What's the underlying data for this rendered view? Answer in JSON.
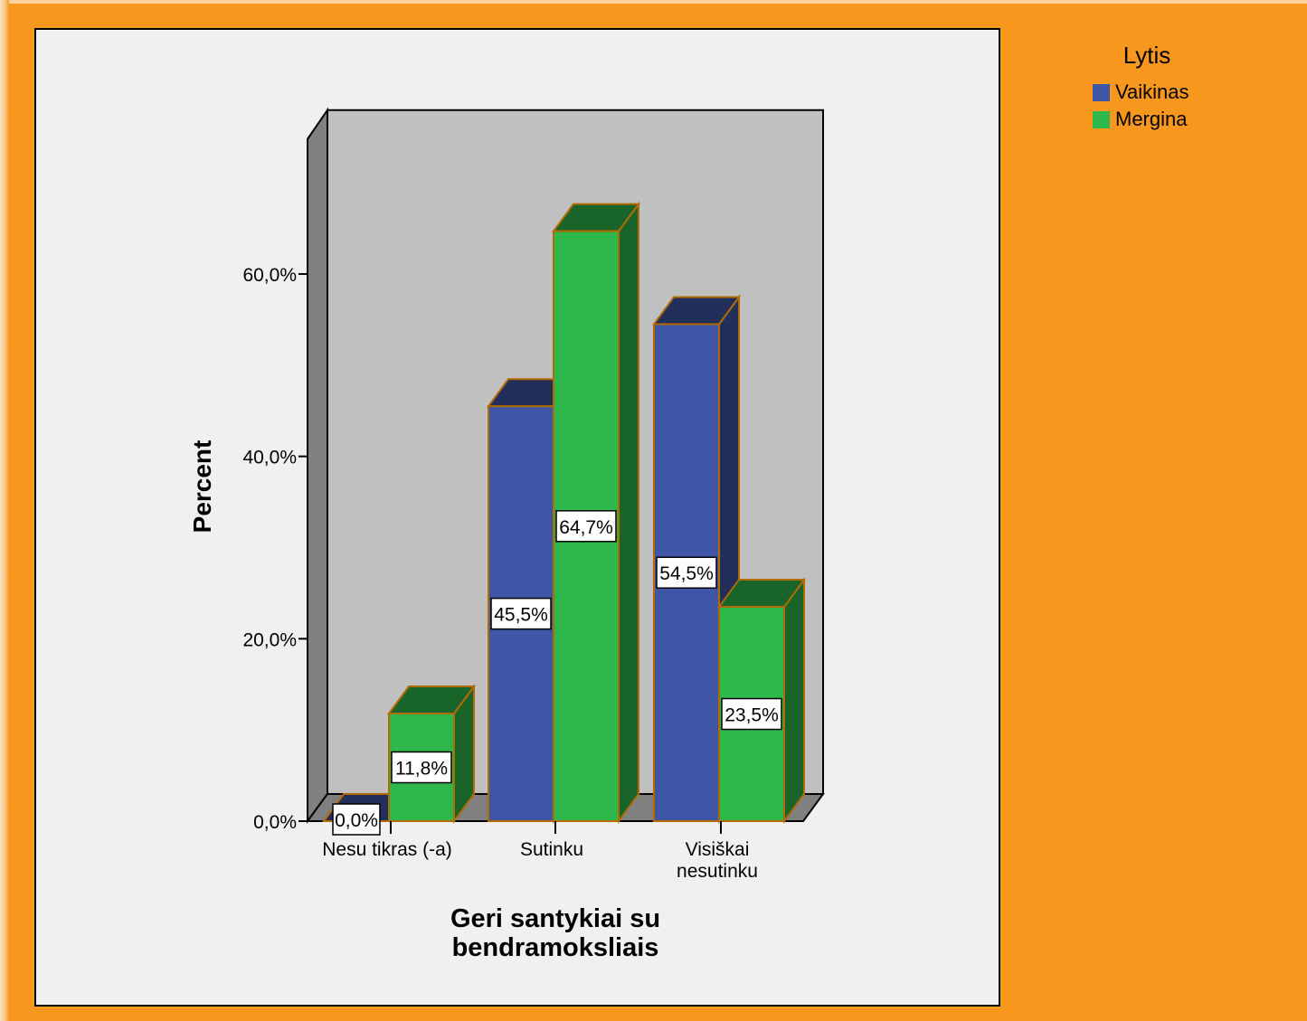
{
  "colors": {
    "page_background": "#f7971e",
    "plot_background": "#c0c0c0",
    "panel_background": "#f0f0f0",
    "bar_outline": "#b36b00"
  },
  "legend": {
    "title": "Lytis",
    "items": [
      {
        "label": "Vaikinas",
        "color": "#3f56a6"
      },
      {
        "label": "Mergina",
        "color": "#2eb84b"
      }
    ]
  },
  "chart_data": {
    "type": "bar",
    "style": "3d-clustered",
    "xlabel": "Geri santykiai su\nbendramoksliais",
    "ylabel": "Percent",
    "categories": [
      "Nesu tikras (-a)",
      "Sutinku",
      "Visiškai\nnesutinku"
    ],
    "series": [
      {
        "name": "Vaikinas",
        "color": "#3f56a6",
        "values": [
          0.0,
          45.5,
          54.5
        ],
        "labels": [
          "0,0%",
          "45,5%",
          "54,5%"
        ]
      },
      {
        "name": "Mergina",
        "color": "#2eb84b",
        "values": [
          11.8,
          64.7,
          23.5
        ],
        "labels": [
          "11,8%",
          "64,7%",
          "23,5%"
        ]
      }
    ],
    "yticks": [
      0,
      20,
      40,
      60
    ],
    "ytick_labels": [
      "0,0%",
      "20,0%",
      "40,0%",
      "60,0%"
    ],
    "ylim": [
      0,
      75
    ],
    "grid": false,
    "legend_position": "top-right"
  }
}
